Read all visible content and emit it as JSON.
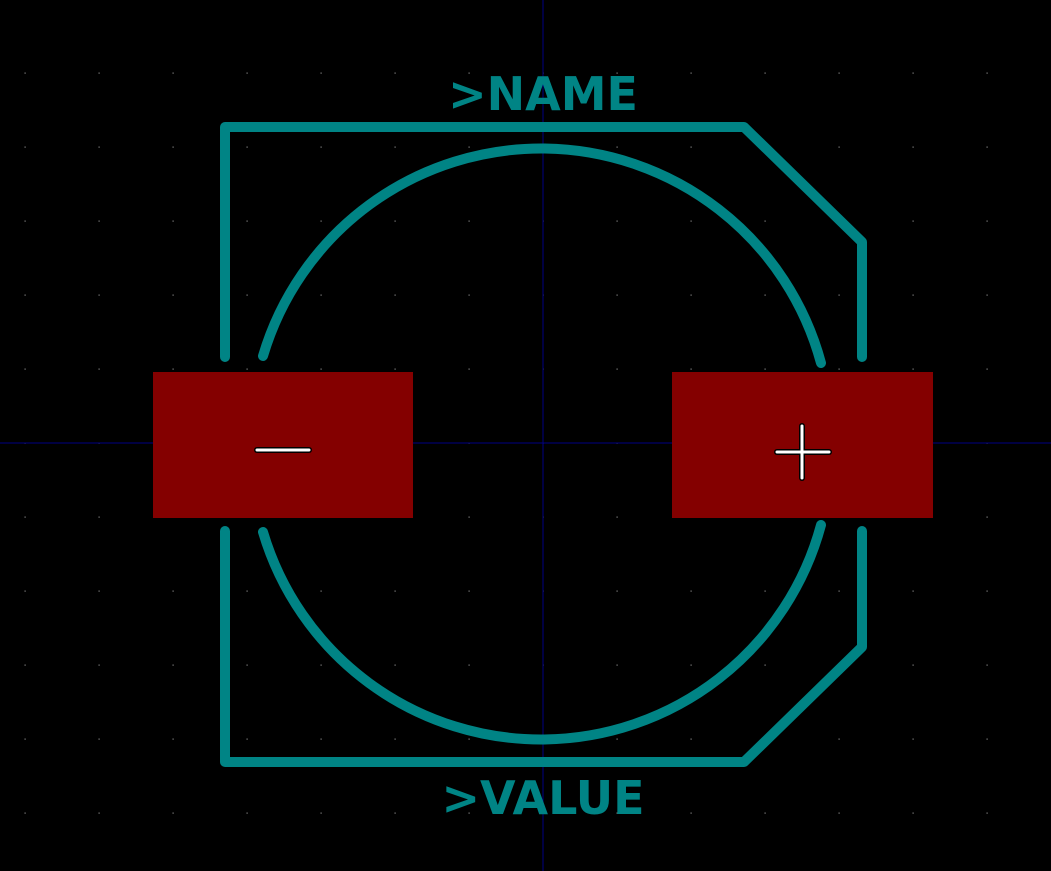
{
  "editor": {
    "view": "footprint-editor-canvas",
    "background_color": "#000000"
  },
  "footprint": {
    "name_label": ">NAME",
    "value_label": ">VALUE",
    "silkscreen_color": "#008485",
    "copper_color": "#840000",
    "axis_color": "#000084",
    "grid_color": "#848484",
    "pads": [
      {
        "id": "pad-negative",
        "polarity_mark": "minus",
        "polarity_icon": "minus-icon"
      },
      {
        "id": "pad-positive",
        "polarity_mark": "plus",
        "polarity_icon": "plus-icon"
      }
    ]
  }
}
